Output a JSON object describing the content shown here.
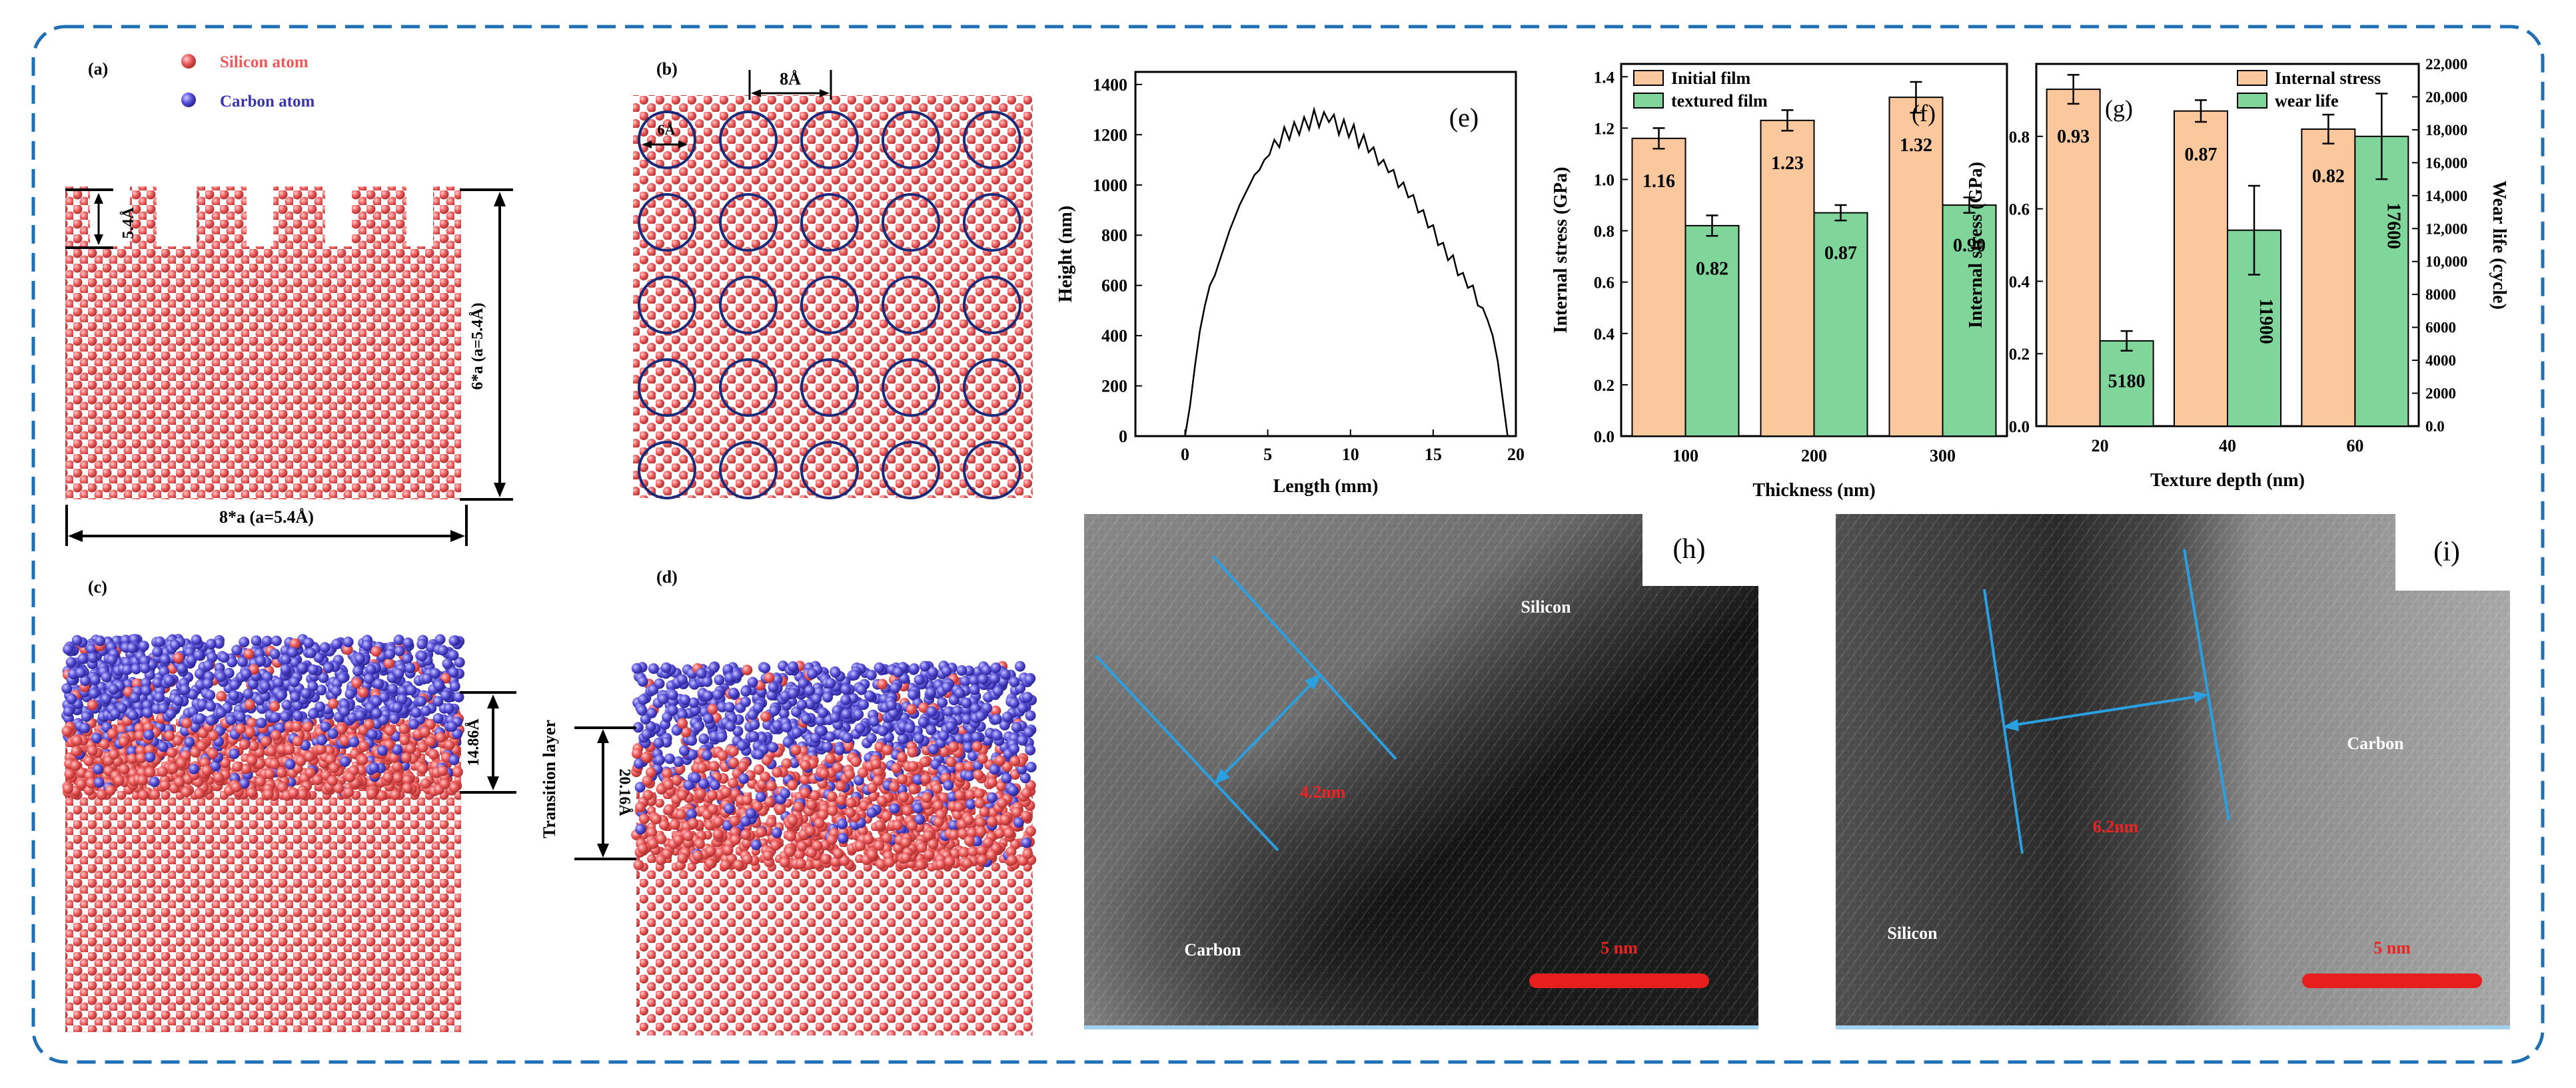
{
  "panels": {
    "a": {
      "label": "(a)",
      "legend": [
        {
          "name": "Silicon atom",
          "color": "#ea5a5a"
        },
        {
          "name": "Carbon atom",
          "color": "#5a52d8"
        }
      ],
      "dim_depth": "5.4Å",
      "dim_height": "6*a (a=5.4Å)",
      "dim_width": "8*a (a=5.4Å)"
    },
    "b": {
      "label": "(b)",
      "dim_spacing": "8Å",
      "dim_diameter": "6Å"
    },
    "c": {
      "label": "(c)",
      "dim_thickness": "14.86Å"
    },
    "d": {
      "label": "(d)",
      "side_label": "Transition layer",
      "dim_thickness": "20.16Å"
    },
    "h": {
      "label": "(h)",
      "region_top": "Silicon",
      "region_bottom": "Carbon",
      "measure": "4.2nm",
      "scale": "5 nm"
    },
    "i": {
      "label": "(i)",
      "region_left": "Silicon",
      "region_right": "Carbon",
      "measure": "6.2nm",
      "scale": "5 nm"
    }
  },
  "colors": {
    "silicon": "#ea5a5a",
    "carbon": "#5a52d8",
    "frame": "#1f6fb5",
    "orange_bar": "#fbc79d",
    "green_bar": "#7fd59a",
    "measure_line": "#2aa0e0",
    "scale_bar": "#e81e1e"
  },
  "chart_data": [
    {
      "id": "e",
      "label": "(e)",
      "type": "line",
      "xlabel": "Length (mm)",
      "ylabel": "Height (nm)",
      "xlim": [
        -3,
        20
      ],
      "ylim": [
        0,
        1450
      ],
      "xticks": [
        0,
        5,
        10,
        15,
        20
      ],
      "yticks": [
        0,
        200,
        400,
        600,
        800,
        1000,
        1200,
        1400
      ],
      "x": [
        0,
        0.3,
        0.6,
        0.9,
        1.2,
        1.5,
        1.8,
        2.1,
        2.4,
        2.7,
        3.0,
        3.3,
        3.6,
        3.9,
        4.2,
        4.5,
        4.8,
        5.1,
        5.4,
        5.7,
        6.0,
        6.3,
        6.6,
        6.9,
        7.2,
        7.5,
        7.8,
        8.1,
        8.4,
        8.7,
        9.0,
        9.3,
        9.6,
        9.9,
        10.2,
        10.5,
        10.8,
        11.1,
        11.4,
        11.7,
        12.0,
        12.3,
        12.6,
        12.9,
        13.2,
        13.5,
        13.8,
        14.1,
        14.4,
        14.7,
        15.0,
        15.3,
        15.6,
        15.9,
        16.2,
        16.5,
        16.8,
        17.1,
        17.4,
        17.7,
        18.0,
        18.3,
        18.6,
        18.9,
        19.2,
        19.5
      ],
      "y": [
        0,
        120,
        280,
        420,
        520,
        600,
        640,
        700,
        760,
        820,
        870,
        920,
        960,
        1000,
        1040,
        1060,
        1100,
        1120,
        1180,
        1150,
        1230,
        1180,
        1250,
        1200,
        1270,
        1220,
        1300,
        1230,
        1290,
        1250,
        1280,
        1200,
        1260,
        1190,
        1240,
        1150,
        1200,
        1130,
        1150,
        1080,
        1100,
        1050,
        1060,
        990,
        1010,
        950,
        960,
        890,
        900,
        830,
        840,
        760,
        770,
        700,
        720,
        640,
        650,
        590,
        600,
        520,
        510,
        460,
        400,
        300,
        150,
        0
      ]
    },
    {
      "id": "f",
      "label": "(f)",
      "type": "bar",
      "categories": [
        "100",
        "200",
        "300"
      ],
      "xlabel": "Thickness (nm)",
      "ylabel": "Internal stress (GPa)",
      "ylim": [
        0,
        1.45
      ],
      "yticks": [
        0.0,
        0.2,
        0.4,
        0.6,
        0.8,
        1.0,
        1.2,
        1.4
      ],
      "series": [
        {
          "name": "Initial film",
          "values": [
            1.16,
            1.23,
            1.32
          ],
          "errors": [
            0.04,
            0.04,
            0.06
          ],
          "labels": [
            "1.16",
            "1.23",
            "1.32"
          ]
        },
        {
          "name": "textured film",
          "values": [
            0.82,
            0.87,
            0.9
          ],
          "errors": [
            0.04,
            0.03,
            0.03
          ],
          "labels": [
            "0.82",
            "0.87",
            "0.90"
          ]
        }
      ]
    },
    {
      "id": "g",
      "label": "(g)",
      "type": "bar",
      "categories": [
        "20",
        "40",
        "60"
      ],
      "xlabel": "Texture depth (nm)",
      "ylabel": "Internal stress (GPa)",
      "ylabel_right": "Wear life (cycle)",
      "ylim": [
        0,
        1.0
      ],
      "yticks": [
        0.0,
        0.2,
        0.4,
        0.6,
        0.8
      ],
      "ylim_right": [
        0,
        22000
      ],
      "yticks_right": [
        0.0,
        2000,
        4000,
        6000,
        8000,
        10000,
        12000,
        14000,
        16000,
        18000,
        20000,
        22000
      ],
      "ytick_labels_right": [
        "0.0",
        "2000",
        "4000",
        "6000",
        "8000",
        "10,000",
        "12,000",
        "14,000",
        "16,000",
        "18,000",
        "20,000",
        "22,000"
      ],
      "series": [
        {
          "name": "Internal stress",
          "axis": "left",
          "values": [
            0.93,
            0.87,
            0.82
          ],
          "errors": [
            0.04,
            0.03,
            0.04
          ],
          "labels": [
            "0.93",
            "0.87",
            "0.82"
          ]
        },
        {
          "name": "wear life",
          "axis": "right",
          "values": [
            5180,
            11900,
            17600
          ],
          "errors": [
            600,
            2700,
            2600
          ],
          "labels": [
            "5180",
            "11900",
            "17600"
          ]
        }
      ]
    }
  ]
}
